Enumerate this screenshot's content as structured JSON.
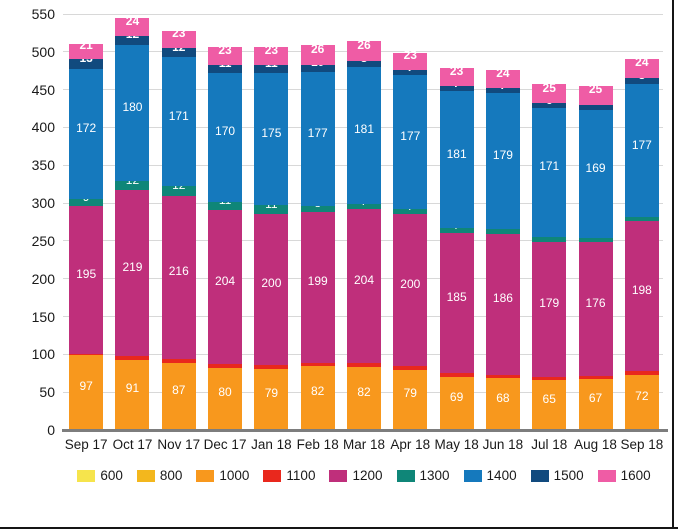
{
  "chart_data": {
    "type": "bar",
    "stacked": true,
    "title": "",
    "xlabel": "",
    "ylabel": "",
    "ylim": [
      0,
      550
    ],
    "ytick_step": 50,
    "yticks": [
      0,
      50,
      100,
      150,
      200,
      250,
      300,
      350,
      400,
      450,
      500,
      550
    ],
    "grid": true,
    "legend_position": "bottom",
    "categories": [
      "Sep 17",
      "Oct 17",
      "Nov 17",
      "Dec 17",
      "Jan 18",
      "Feb 18",
      "Mar 18",
      "Apr 18",
      "May 18",
      "Jun 18",
      "Jul 18",
      "Aug 18",
      "Sep 18"
    ],
    "series": [
      {
        "name": "600",
        "color": "#f6e44c",
        "label_color": "#8a8a8a",
        "bold": false,
        "values": [
          2,
          2,
          2,
          2,
          2,
          2,
          1,
          1,
          1,
          1,
          1,
          1,
          1
        ]
      },
      {
        "name": "800",
        "color": "#f3b71d",
        "label_color": "#ffffff",
        "bold": false,
        "values": [
          0,
          0,
          0,
          0,
          0,
          0,
          0,
          0,
          0,
          0,
          0,
          0,
          0
        ]
      },
      {
        "name": "1000",
        "color": "#f8981d",
        "label_color": "#ffffff",
        "bold": false,
        "values": [
          97,
          91,
          87,
          80,
          79,
          82,
          82,
          79,
          69,
          68,
          65,
          67,
          72
        ]
      },
      {
        "name": "1100",
        "color": "#e9281d",
        "label_color": "#ffffff",
        "bold": false,
        "values": [
          2,
          5,
          5,
          5,
          5,
          5,
          5,
          5,
          5,
          4,
          4,
          4,
          5
        ]
      },
      {
        "name": "1200",
        "color": "#bf2f7b",
        "label_color": "#ffffff",
        "bold": false,
        "values": [
          195,
          219,
          216,
          204,
          200,
          199,
          204,
          200,
          185,
          186,
          179,
          176,
          198
        ]
      },
      {
        "name": "1300",
        "color": "#0f8678",
        "label_color": "#ffffff",
        "bold": false,
        "values": [
          9,
          12,
          12,
          11,
          11,
          8,
          7,
          7,
          7,
          7,
          6,
          6,
          5
        ]
      },
      {
        "name": "1400",
        "color": "#1579bd",
        "label_color": "#ffffff",
        "bold": false,
        "values": [
          172,
          180,
          171,
          170,
          175,
          177,
          181,
          177,
          181,
          179,
          171,
          169,
          177
        ]
      },
      {
        "name": "1500",
        "color": "#114a7e",
        "label_color": "#ffffff",
        "bold": true,
        "values": [
          13,
          12,
          12,
          11,
          11,
          10,
          8,
          7,
          7,
          7,
          6,
          7,
          8
        ]
      },
      {
        "name": "1600",
        "color": "#ef5ca5",
        "label_color": "#ffffff",
        "bold": true,
        "values": [
          21,
          24,
          23,
          23,
          23,
          26,
          26,
          23,
          23,
          24,
          25,
          25,
          24
        ]
      }
    ]
  },
  "style_colors": {
    "gridline": "#d8d8d8",
    "axis_line": "#7d7d7d",
    "tick_text": "#1a1a1a",
    "muted_segment_label": "#8a8a8a",
    "frame_border": "#151515",
    "background": "#ffffff"
  }
}
